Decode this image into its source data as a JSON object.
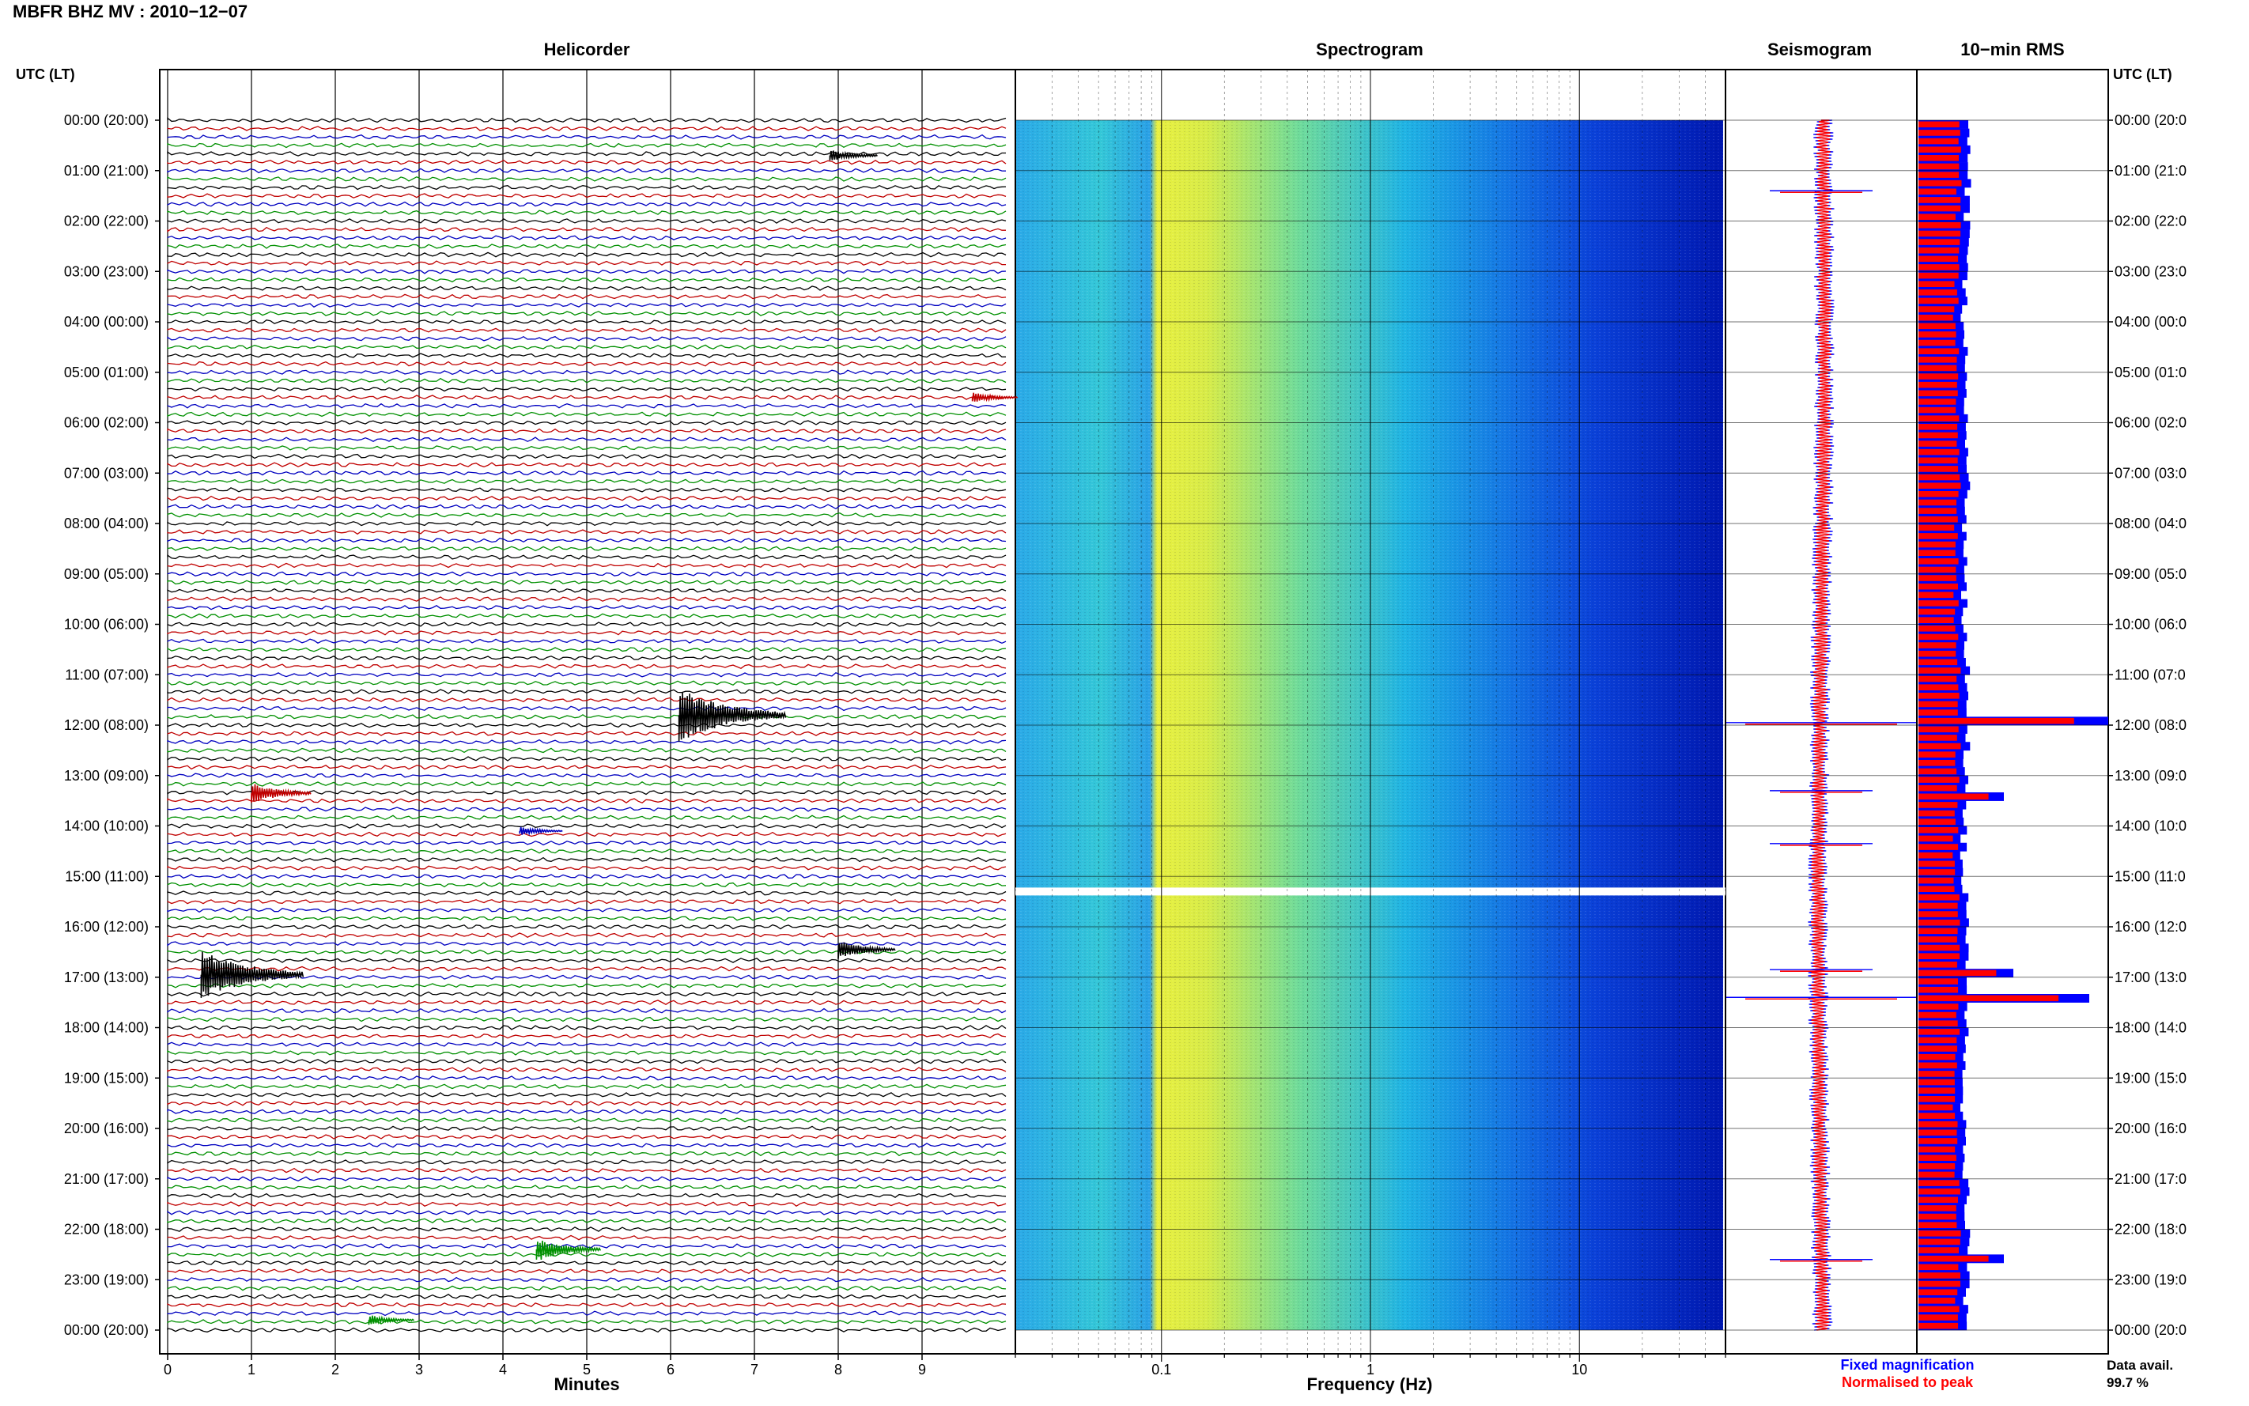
{
  "header": {
    "title": "MBFR BHZ MV : 2010−12−07"
  },
  "chart_data": {
    "type": "line",
    "station": "MBFR",
    "channel": "BHZ",
    "network": "MV",
    "date": "2010−12−07",
    "panels": {
      "helicorder": {
        "title": "Helicorder",
        "xlabel": "Minutes",
        "xticks": [
          "0",
          "1",
          "2",
          "3",
          "4",
          "5",
          "6",
          "7",
          "8",
          "9"
        ],
        "xlim": [
          0,
          10
        ],
        "line_minutes": 10,
        "line_colors": [
          "#000000",
          "#c00000",
          "#0000c0",
          "#009000"
        ],
        "events": [
          {
            "utc_hour": 0.7,
            "minute": 7.9,
            "amplitude": 0.35,
            "color": "#000000"
          },
          {
            "utc_hour": 5.5,
            "minute": 9.6,
            "amplitude": 0.3,
            "color": "#c00000"
          },
          {
            "utc_hour": 11.8,
            "minute": 6.1,
            "amplitude": 1.6,
            "color": "#000000"
          },
          {
            "utc_hour": 13.35,
            "minute": 1.0,
            "amplitude": 0.6,
            "color": "#c00000"
          },
          {
            "utc_hour": 14.1,
            "minute": 4.2,
            "amplitude": 0.25,
            "color": "#0000c0"
          },
          {
            "utc_hour": 16.45,
            "minute": 8.0,
            "amplitude": 0.55,
            "color": "#000000"
          },
          {
            "utc_hour": 16.95,
            "minute": 0.4,
            "amplitude": 1.5,
            "color": "#000000"
          },
          {
            "utc_hour": 22.4,
            "minute": 4.4,
            "amplitude": 0.7,
            "color": "#009000"
          },
          {
            "utc_hour": 23.8,
            "minute": 2.4,
            "amplitude": 0.3,
            "color": "#009000"
          }
        ]
      },
      "spectrogram": {
        "title": "Spectrogram",
        "xlabel": "Frequency (Hz)",
        "xscale": "log",
        "xticks": [
          "0.1",
          "1",
          "10"
        ],
        "xlim": [
          0.02,
          50
        ],
        "data_gap_utc": 15.3
      },
      "seismogram": {
        "title": "Seismogram",
        "spikes_utc": [
          1.4,
          11.95,
          13.3,
          14.35,
          16.85,
          17.4,
          22.6
        ]
      },
      "rms": {
        "title": "10−min RMS",
        "blue_label": "Fixed magnification",
        "red_label": "Normalised to peak",
        "blue_color": "#0000ff",
        "red_color": "#ff0000",
        "baseline_relative": 0.25,
        "peaks": [
          {
            "utc_hour": 11.9,
            "value": 1.0
          },
          {
            "utc_hour": 13.35,
            "value": 0.45
          },
          {
            "utc_hour": 16.85,
            "value": 0.5
          },
          {
            "utc_hour": 17.4,
            "value": 0.9
          },
          {
            "utc_hour": 22.55,
            "value": 0.45
          }
        ]
      }
    },
    "y_axis": {
      "label_left": "UTC (LT)",
      "label_right": "UTC (LT)",
      "hours": [
        "00:00 (20:00)",
        "01:00 (21:00)",
        "02:00 (22:00)",
        "03:00 (23:00)",
        "04:00 (00:00)",
        "05:00 (01:00)",
        "06:00 (02:00)",
        "07:00 (03:00)",
        "08:00 (04:00)",
        "09:00 (05:00)",
        "10:00 (06:00)",
        "11:00 (07:00)",
        "12:00 (08:00)",
        "13:00 (09:00)",
        "14:00 (10:00)",
        "15:00 (11:00)",
        "16:00 (12:00)",
        "17:00 (13:00)",
        "18:00 (14:00)",
        "19:00 (15:00)",
        "20:00 (16:00)",
        "21:00 (17:00)",
        "22:00 (18:00)",
        "23:00 (19:00)",
        "00:00 (20:00)"
      ],
      "hours_right": [
        "00:00 (20:0",
        "01:00 (21:0",
        "02:00 (22:0",
        "03:00 (23:0",
        "04:00 (00:0",
        "05:00 (01:0",
        "06:00 (02:0",
        "07:00 (03:0",
        "08:00 (04:0",
        "09:00 (05:0",
        "10:00 (06:0",
        "11:00 (07:0",
        "12:00 (08:0",
        "13:00 (09:0",
        "14:00 (10:0",
        "15:00 (11:0",
        "16:00 (12:0",
        "17:00 (13:0",
        "18:00 (14:0",
        "19:00 (15:0",
        "20:00 (16:0",
        "21:00 (17:0",
        "22:00 (18:0",
        "23:00 (19:0",
        "00:00 (20:0"
      ]
    },
    "data_availability": {
      "label": "Data avail.",
      "value": "99.7 %"
    }
  }
}
